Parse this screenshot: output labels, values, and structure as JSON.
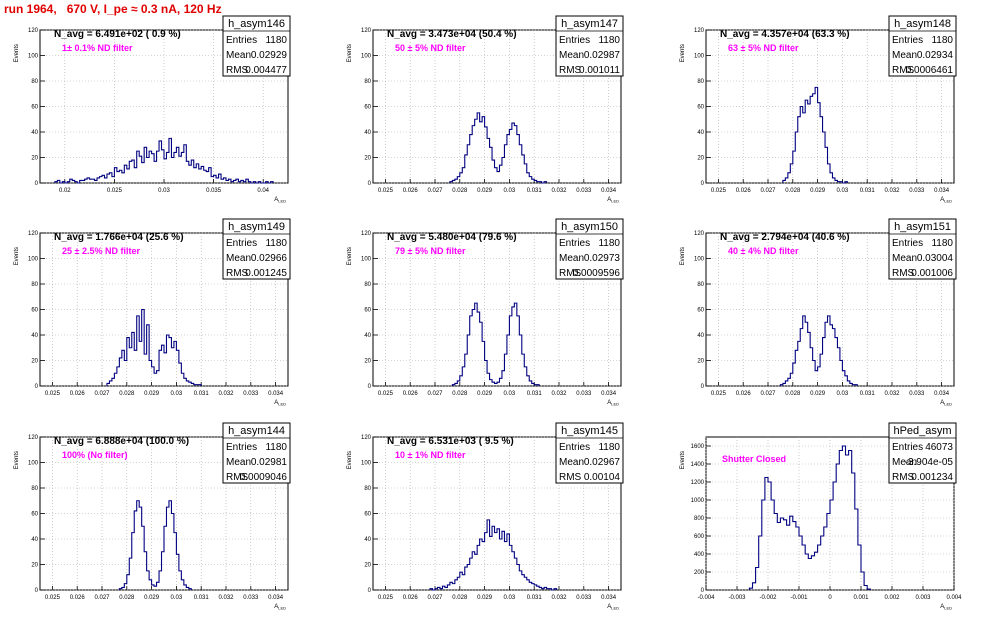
{
  "title": "run 1964,   670 V, I_pe ≈ 0.3 nA, 120 Hz",
  "colors": {
    "title": "#e00000",
    "histogram": "#000080",
    "filter_label": "#ff00ff",
    "grid": "#aaaaaa"
  },
  "chart_data": [
    {
      "type": "histogram",
      "name": "h_asym146",
      "stats": {
        "entries": "1180",
        "mean": "0.02929",
        "rms": "0.004477"
      },
      "n_avg": "N_avg = 6.491e+02 ( 0.9 %)",
      "filter": "1± 0.1% ND filter",
      "ylabel": "Events",
      "xlabel": "A_LED",
      "xlim": [
        0.0175,
        0.0425
      ],
      "ylim": [
        0,
        120
      ],
      "xticks": [
        "0.02",
        "0.025",
        "0.03",
        "0.035",
        "0.04"
      ],
      "xtick_values": [
        0.02,
        0.025,
        0.03,
        0.035,
        0.04
      ],
      "yticks": [
        "0",
        "20",
        "40",
        "60",
        "80",
        "100",
        "120"
      ],
      "ytick_values": [
        0,
        20,
        40,
        60,
        80,
        100,
        120
      ],
      "bins": {
        "start": 0.019,
        "width": 0.00025,
        "counts": [
          1,
          2,
          0,
          1,
          0,
          1,
          3,
          2,
          1,
          0,
          2,
          2,
          3,
          4,
          3,
          3,
          2,
          4,
          5,
          6,
          4,
          7,
          8,
          5,
          12,
          9,
          10,
          8,
          14,
          11,
          17,
          18,
          12,
          25,
          21,
          16,
          28,
          20,
          25,
          23,
          17,
          25,
          33,
          26,
          19,
          24,
          35,
          20,
          24,
          28,
          21,
          24,
          30,
          17,
          14,
          18,
          12,
          15,
          11,
          13,
          10,
          9,
          12,
          5,
          6,
          4,
          7,
          3,
          4,
          2,
          3,
          1,
          2,
          3,
          1,
          2,
          1,
          3,
          1,
          0,
          1,
          0,
          1,
          0,
          0,
          1,
          0,
          1
        ]
      }
    },
    {
      "type": "histogram",
      "name": "h_asym147",
      "stats": {
        "entries": "1180",
        "mean": "0.02987",
        "rms": "0.001011"
      },
      "n_avg": "N_avg = 3.473e+04 (50.4 %)",
      "filter": "50 ± 5% ND filter",
      "ylabel": "Events",
      "xlabel": "A_LED",
      "xlim": [
        0.0245,
        0.0345
      ],
      "ylim": [
        0,
        120
      ],
      "xticks": [
        "0.025",
        "0.026",
        "0.027",
        "0.028",
        "0.029",
        "0.03",
        "0.031",
        "0.032",
        "0.033",
        "0.034"
      ],
      "xtick_values": [
        0.025,
        0.026,
        0.027,
        0.028,
        0.029,
        0.03,
        0.031,
        0.032,
        0.033,
        0.034
      ],
      "yticks": [
        "0",
        "20",
        "40",
        "60",
        "80",
        "100",
        "120"
      ],
      "ytick_values": [
        0,
        20,
        40,
        60,
        80,
        100,
        120
      ],
      "bins": {
        "start": 0.0276,
        "width": 0.0001,
        "counts": [
          1,
          2,
          3,
          5,
          8,
          12,
          22,
          30,
          38,
          45,
          50,
          55,
          48,
          52,
          44,
          35,
          28,
          18,
          12,
          9,
          14,
          20,
          30,
          38,
          42,
          47,
          45,
          38,
          30,
          22,
          15,
          8,
          5,
          3,
          2,
          1,
          1,
          0,
          1
        ]
      }
    },
    {
      "type": "histogram",
      "name": "h_asym148",
      "stats": {
        "entries": "1180",
        "mean": "0.02934",
        "rms": "0.0006461"
      },
      "n_avg": "N_avg = 4.357e+04 (63.3 %)",
      "filter": "63 ± 5% ND filter",
      "ylabel": "Events",
      "xlabel": "A_LED",
      "xlim": [
        0.0245,
        0.0345
      ],
      "ylim": [
        0,
        120
      ],
      "xticks": [
        "0.025",
        "0.026",
        "0.027",
        "0.028",
        "0.029",
        "0.03",
        "0.031",
        "0.032",
        "0.033",
        "0.034"
      ],
      "xtick_values": [
        0.025,
        0.026,
        0.027,
        0.028,
        0.029,
        0.03,
        0.031,
        0.032,
        0.033,
        0.034
      ],
      "yticks": [
        "0",
        "20",
        "40",
        "60",
        "80",
        "100",
        "120"
      ],
      "ytick_values": [
        0,
        20,
        40,
        60,
        80,
        100,
        120
      ],
      "bins": {
        "start": 0.0276,
        "width": 0.0001,
        "counts": [
          2,
          4,
          8,
          15,
          25,
          40,
          52,
          60,
          55,
          65,
          62,
          68,
          70,
          75,
          63,
          52,
          40,
          28,
          15,
          8,
          4,
          2,
          1,
          1,
          0,
          1
        ]
      }
    },
    {
      "type": "histogram",
      "name": "h_asym149",
      "stats": {
        "entries": "1180",
        "mean": "0.02966",
        "rms": "0.001245"
      },
      "n_avg": "N_avg = 1.766e+04 (25.6 %)",
      "filter": "25 ± 2.5% ND filter",
      "ylabel": "Events",
      "xlabel": "A_LED",
      "xlim": [
        0.0245,
        0.0345
      ],
      "ylim": [
        0,
        120
      ],
      "xticks": [
        "0.025",
        "0.026",
        "0.027",
        "0.028",
        "0.029",
        "0.03",
        "0.031",
        "0.032",
        "0.033",
        "0.034"
      ],
      "xtick_values": [
        0.025,
        0.026,
        0.027,
        0.028,
        0.029,
        0.03,
        0.031,
        0.032,
        0.033,
        0.034
      ],
      "yticks": [
        "0",
        "20",
        "40",
        "60",
        "80",
        "100",
        "120"
      ],
      "ytick_values": [
        0,
        20,
        40,
        60,
        80,
        100,
        120
      ],
      "bins": {
        "start": 0.0272,
        "width": 0.0001,
        "counts": [
          2,
          4,
          6,
          10,
          15,
          22,
          28,
          20,
          38,
          30,
          42,
          28,
          55,
          35,
          60,
          25,
          48,
          20,
          15,
          10,
          12,
          28,
          32,
          26,
          40,
          38,
          30,
          35,
          28,
          18,
          10,
          6,
          4,
          3,
          2,
          1,
          1,
          1
        ]
      }
    },
    {
      "type": "histogram",
      "name": "h_asym150",
      "stats": {
        "entries": "1180",
        "mean": "0.02973",
        "rms": "0.0009596"
      },
      "n_avg": "N_avg = 5.480e+04 (79.6 %)",
      "filter": "79 ± 5% ND filter",
      "ylabel": "Events",
      "xlabel": "A_LED",
      "xlim": [
        0.0245,
        0.0345
      ],
      "ylim": [
        0,
        120
      ],
      "xticks": [
        "0.025",
        "0.026",
        "0.027",
        "0.028",
        "0.029",
        "0.03",
        "0.031",
        "0.032",
        "0.033",
        "0.034"
      ],
      "xtick_values": [
        0.025,
        0.026,
        0.027,
        0.028,
        0.029,
        0.03,
        0.031,
        0.032,
        0.033,
        0.034
      ],
      "yticks": [
        "0",
        "20",
        "40",
        "60",
        "80",
        "100",
        "120"
      ],
      "ytick_values": [
        0,
        20,
        40,
        60,
        80,
        100,
        120
      ],
      "bins": {
        "start": 0.0277,
        "width": 0.0001,
        "counts": [
          1,
          2,
          4,
          8,
          15,
          25,
          40,
          55,
          60,
          65,
          58,
          50,
          35,
          20,
          10,
          5,
          3,
          2,
          3,
          6,
          12,
          25,
          40,
          55,
          62,
          65,
          55,
          40,
          25,
          15,
          8,
          4,
          2,
          1,
          1
        ]
      }
    },
    {
      "type": "histogram",
      "name": "h_asym151",
      "stats": {
        "entries": "1180",
        "mean": "0.03004",
        "rms": "0.001006"
      },
      "n_avg": "N_avg = 2.794e+04 (40.6 %)",
      "filter": "40 ± 4% ND filter",
      "ylabel": "Events",
      "xlabel": "A_LED",
      "xlim": [
        0.0245,
        0.0345
      ],
      "ylim": [
        0,
        120
      ],
      "xticks": [
        "0.025",
        "0.026",
        "0.027",
        "0.028",
        "0.029",
        "0.03",
        "0.031",
        "0.032",
        "0.033",
        "0.034"
      ],
      "xtick_values": [
        0.025,
        0.026,
        0.027,
        0.028,
        0.029,
        0.03,
        0.031,
        0.032,
        0.033,
        0.034
      ],
      "yticks": [
        "0",
        "20",
        "40",
        "60",
        "80",
        "100",
        "120"
      ],
      "ytick_values": [
        0,
        20,
        40,
        60,
        80,
        100,
        120
      ],
      "bins": {
        "start": 0.0275,
        "width": 0.0001,
        "counts": [
          1,
          2,
          4,
          6,
          10,
          18,
          28,
          35,
          45,
          55,
          50,
          42,
          30,
          20,
          12,
          15,
          25,
          38,
          50,
          55,
          48,
          45,
          38,
          30,
          20,
          12,
          8,
          4,
          2,
          1,
          1
        ]
      }
    },
    {
      "type": "histogram",
      "name": "h_asym144",
      "stats": {
        "entries": "1180",
        "mean": "0.02981",
        "rms": "0.0009046"
      },
      "n_avg": "N_avg = 6.888e+04 (100.0 %)",
      "filter": "100% (No filter)",
      "ylabel": "Events",
      "xlabel": "A_LED",
      "xlim": [
        0.0245,
        0.0345
      ],
      "ylim": [
        0,
        120
      ],
      "xticks": [
        "0.025",
        "0.026",
        "0.027",
        "0.028",
        "0.029",
        "0.03",
        "0.031",
        "0.032",
        "0.033",
        "0.034"
      ],
      "xtick_values": [
        0.025,
        0.026,
        0.027,
        0.028,
        0.029,
        0.03,
        0.031,
        0.032,
        0.033,
        0.034
      ],
      "yticks": [
        "0",
        "20",
        "40",
        "60",
        "80",
        "100",
        "120"
      ],
      "ytick_values": [
        0,
        20,
        40,
        60,
        80,
        100,
        120
      ],
      "bins": {
        "start": 0.0277,
        "width": 0.0001,
        "counts": [
          1,
          2,
          5,
          12,
          25,
          45,
          62,
          70,
          65,
          50,
          30,
          15,
          8,
          4,
          3,
          6,
          15,
          30,
          50,
          65,
          70,
          60,
          45,
          28,
          15,
          8,
          4,
          2,
          1
        ]
      }
    },
    {
      "type": "histogram",
      "name": "h_asym145",
      "stats": {
        "entries": "1180",
        "mean": "0.02967",
        "rms": "0.00104"
      },
      "n_avg": "N_avg = 6.531e+03 ( 9.5 %)",
      "filter": "10 ± 1% ND filter",
      "ylabel": "Events",
      "xlabel": "A_LED",
      "xlim": [
        0.0245,
        0.0345
      ],
      "ylim": [
        0,
        120
      ],
      "xticks": [
        "0.025",
        "0.026",
        "0.027",
        "0.028",
        "0.029",
        "0.03",
        "0.031",
        "0.032",
        "0.033",
        "0.034"
      ],
      "xtick_values": [
        0.025,
        0.026,
        0.027,
        0.028,
        0.029,
        0.03,
        0.031,
        0.032,
        0.033,
        0.034
      ],
      "yticks": [
        "0",
        "20",
        "40",
        "60",
        "80",
        "100",
        "120"
      ],
      "ytick_values": [
        0,
        20,
        40,
        60,
        80,
        100,
        120
      ],
      "bins": {
        "start": 0.0268,
        "width": 0.0001,
        "counts": [
          1,
          0,
          1,
          2,
          1,
          3,
          2,
          4,
          6,
          5,
          8,
          10,
          14,
          12,
          18,
          20,
          25,
          30,
          28,
          35,
          40,
          38,
          45,
          55,
          42,
          50,
          45,
          48,
          40,
          46,
          38,
          44,
          35,
          30,
          25,
          20,
          15,
          12,
          10,
          8,
          6,
          5,
          4,
          3,
          2,
          1,
          2,
          1,
          1,
          0,
          1
        ]
      }
    },
    {
      "type": "histogram",
      "name": "hPed_asym",
      "stats": {
        "entries": "46073",
        "mean": "-3.904e-05",
        "rms": "0.001234"
      },
      "filter": "Shutter Closed",
      "ylabel": "Events",
      "xlabel": "A_LED",
      "xlim": [
        -0.004,
        0.004
      ],
      "ylim": [
        0,
        1700
      ],
      "xticks": [
        "-0.004",
        "-0.003",
        "-0.002",
        "-0.001",
        "0",
        "0.001",
        "0.002",
        "0.003",
        "0.004"
      ],
      "xtick_values": [
        -0.004,
        -0.003,
        -0.002,
        -0.001,
        0,
        0.001,
        0.002,
        0.003,
        0.004
      ],
      "yticks": [
        "0",
        "200",
        "400",
        "600",
        "800",
        "1000",
        "1200",
        "1400",
        "1600"
      ],
      "ytick_values": [
        0,
        200,
        400,
        600,
        800,
        1000,
        1200,
        1400,
        1600
      ],
      "bins": {
        "start": -0.0026,
        "width": 0.0001,
        "counts": [
          20,
          80,
          250,
          600,
          1000,
          1250,
          1200,
          1000,
          850,
          750,
          800,
          780,
          720,
          820,
          760,
          700,
          600,
          500,
          400,
          350,
          380,
          420,
          500,
          600,
          700,
          850,
          1000,
          1200,
          1400,
          1550,
          1600,
          1500,
          1550,
          1300,
          900,
          500,
          200,
          50,
          10
        ]
      }
    }
  ]
}
